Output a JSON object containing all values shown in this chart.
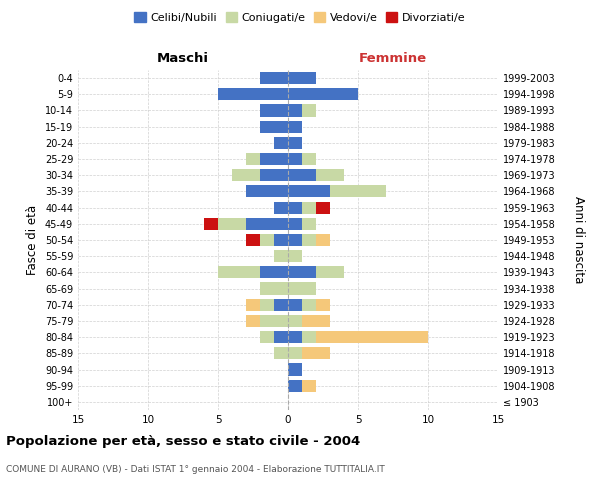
{
  "age_groups": [
    "100+",
    "95-99",
    "90-94",
    "85-89",
    "80-84",
    "75-79",
    "70-74",
    "65-69",
    "60-64",
    "55-59",
    "50-54",
    "45-49",
    "40-44",
    "35-39",
    "30-34",
    "25-29",
    "20-24",
    "15-19",
    "10-14",
    "5-9",
    "0-4"
  ],
  "birth_years": [
    "≤ 1903",
    "1904-1908",
    "1909-1913",
    "1914-1918",
    "1919-1923",
    "1924-1928",
    "1929-1933",
    "1934-1938",
    "1939-1943",
    "1944-1948",
    "1949-1953",
    "1954-1958",
    "1959-1963",
    "1964-1968",
    "1969-1973",
    "1974-1978",
    "1979-1983",
    "1984-1988",
    "1989-1993",
    "1994-1998",
    "1999-2003"
  ],
  "maschi": {
    "celibi": [
      0,
      0,
      0,
      0,
      1,
      0,
      1,
      0,
      2,
      0,
      1,
      3,
      1,
      3,
      2,
      2,
      1,
      2,
      2,
      5,
      2
    ],
    "coniugati": [
      0,
      0,
      0,
      1,
      1,
      2,
      1,
      2,
      3,
      1,
      1,
      2,
      0,
      0,
      2,
      1,
      0,
      0,
      0,
      0,
      0
    ],
    "vedovi": [
      0,
      0,
      0,
      0,
      0,
      1,
      1,
      0,
      0,
      0,
      0,
      0,
      0,
      0,
      0,
      0,
      0,
      0,
      0,
      0,
      0
    ],
    "divorziati": [
      0,
      0,
      0,
      0,
      0,
      0,
      0,
      0,
      0,
      0,
      1,
      1,
      0,
      0,
      0,
      0,
      0,
      0,
      0,
      0,
      0
    ]
  },
  "femmine": {
    "nubili": [
      0,
      1,
      1,
      0,
      1,
      0,
      1,
      0,
      2,
      0,
      1,
      1,
      1,
      3,
      2,
      1,
      1,
      1,
      1,
      5,
      2
    ],
    "coniugate": [
      0,
      0,
      0,
      1,
      1,
      1,
      1,
      2,
      2,
      1,
      1,
      1,
      1,
      4,
      2,
      1,
      0,
      0,
      1,
      0,
      0
    ],
    "vedove": [
      0,
      1,
      0,
      2,
      8,
      2,
      1,
      0,
      0,
      0,
      1,
      0,
      0,
      0,
      0,
      0,
      0,
      0,
      0,
      0,
      0
    ],
    "divorziate": [
      0,
      0,
      0,
      0,
      0,
      0,
      0,
      0,
      0,
      0,
      0,
      0,
      1,
      0,
      0,
      0,
      0,
      0,
      0,
      0,
      0
    ]
  },
  "colors": {
    "celibi_nubili": "#4472C4",
    "coniugati": "#c8d9a5",
    "vedovi": "#f5c87a",
    "divorziati": "#cc1111"
  },
  "xlim": 15,
  "title": "Popolazione per età, sesso e stato civile - 2004",
  "subtitle": "COMUNE DI AURANO (VB) - Dati ISTAT 1° gennaio 2004 - Elaborazione TUTTITALIA.IT",
  "ylabel": "Fasce di età",
  "ylabel_right": "Anni di nascita",
  "xlabel_left": "Maschi",
  "xlabel_right": "Femmine",
  "background_color": "#f5f5f5"
}
